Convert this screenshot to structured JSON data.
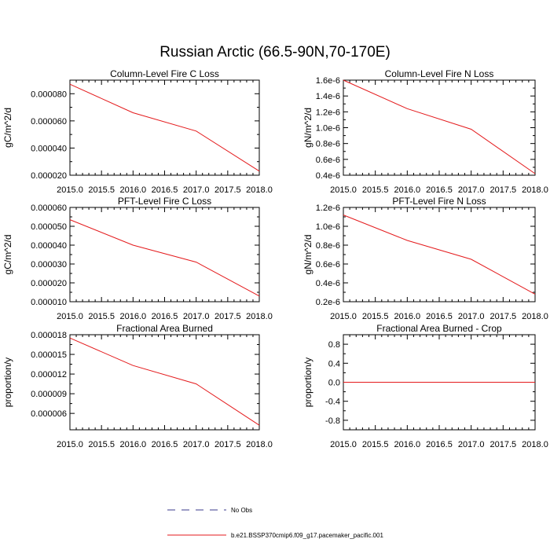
{
  "title": "Russian Arctic (66.5-90N,70-170E)",
  "series_color": "#e41a1c",
  "obs_color": "#3a3a8c",
  "legend": {
    "entries": [
      {
        "label": "No Obs",
        "style": "dashed",
        "color": "#3a3a8c"
      },
      {
        "label": "b.e21.BSSP370cmip6.f09_g17.pacemaker_pacific.001",
        "style": "solid",
        "color": "#e41a1c"
      }
    ]
  },
  "chart_data": [
    {
      "type": "line",
      "title": "Column-Level Fire C Loss",
      "ylabel": "gC/m^2/d",
      "xlim": [
        2015.0,
        2018.0
      ],
      "ylim": [
        2e-05,
        9e-05
      ],
      "x_ticks": [
        "2015.0",
        "2015.5",
        "2016.0",
        "2016.5",
        "2017.0",
        "2017.5",
        "2018.0"
      ],
      "y_ticks": [
        {
          "value": 2e-05,
          "label": "0.000020"
        },
        {
          "value": 4e-05,
          "label": "0.000040"
        },
        {
          "value": 6e-05,
          "label": "0.000060"
        },
        {
          "value": 8e-05,
          "label": "0.000080"
        }
      ],
      "x": [
        2015.0,
        2016.0,
        2017.0,
        2018.0
      ],
      "series": [
        {
          "values": [
            8.7e-05,
            6.6e-05,
            5.25e-05,
            2.3e-05
          ]
        }
      ]
    },
    {
      "type": "line",
      "title": "Column-Level Fire N Loss",
      "ylabel": "gN/m^2/d",
      "xlim": [
        2015.0,
        2018.0
      ],
      "ylim": [
        4e-07,
        1.6e-06
      ],
      "x_ticks": [
        "2015.0",
        "2015.5",
        "2016.0",
        "2016.5",
        "2017.0",
        "2017.5",
        "2018.0"
      ],
      "y_ticks": [
        {
          "value": 4e-07,
          "label": "0.4e-6"
        },
        {
          "value": 6e-07,
          "label": "0.6e-6"
        },
        {
          "value": 8e-07,
          "label": "0.8e-6"
        },
        {
          "value": 1e-06,
          "label": "1.0e-6"
        },
        {
          "value": 1.2e-06,
          "label": "1.2e-6"
        },
        {
          "value": 1.4e-06,
          "label": "1.4e-6"
        },
        {
          "value": 1.6e-06,
          "label": "1.6e-6"
        }
      ],
      "x": [
        2015.0,
        2016.0,
        2017.0,
        2018.0
      ],
      "series": [
        {
          "values": [
            1.6e-06,
            1.24e-06,
            9.8e-07,
            4.2e-07
          ]
        }
      ]
    },
    {
      "type": "line",
      "title": "PFT-Level Fire C Loss",
      "ylabel": "gC/m^2/d",
      "xlim": [
        2015.0,
        2018.0
      ],
      "ylim": [
        1e-05,
        6e-05
      ],
      "x_ticks": [
        "2015.0",
        "2015.5",
        "2016.0",
        "2016.5",
        "2017.0",
        "2017.5",
        "2018.0"
      ],
      "y_ticks": [
        {
          "value": 1e-05,
          "label": "0.000010"
        },
        {
          "value": 2e-05,
          "label": "0.000020"
        },
        {
          "value": 3e-05,
          "label": "0.000030"
        },
        {
          "value": 4e-05,
          "label": "0.000040"
        },
        {
          "value": 5e-05,
          "label": "0.000050"
        },
        {
          "value": 6e-05,
          "label": "0.000060"
        }
      ],
      "x": [
        2015.0,
        2016.0,
        2017.0,
        2018.0
      ],
      "series": [
        {
          "values": [
            5.35e-05,
            4e-05,
            3.1e-05,
            1.3e-05
          ]
        }
      ]
    },
    {
      "type": "line",
      "title": "PFT-Level Fire N Loss",
      "ylabel": "gN/m^2/d",
      "xlim": [
        2015.0,
        2018.0
      ],
      "ylim": [
        2e-07,
        1.2e-06
      ],
      "x_ticks": [
        "2015.0",
        "2015.5",
        "2016.0",
        "2016.5",
        "2017.0",
        "2017.5",
        "2018.0"
      ],
      "y_ticks": [
        {
          "value": 2e-07,
          "label": "0.2e-6"
        },
        {
          "value": 4e-07,
          "label": "0.4e-6"
        },
        {
          "value": 6e-07,
          "label": "0.6e-6"
        },
        {
          "value": 8e-07,
          "label": "0.8e-6"
        },
        {
          "value": 1e-06,
          "label": "1.0e-6"
        },
        {
          "value": 1.2e-06,
          "label": "1.2e-6"
        }
      ],
      "x": [
        2015.0,
        2016.0,
        2017.0,
        2018.0
      ],
      "series": [
        {
          "values": [
            1.12e-06,
            8.5e-07,
            6.5e-07,
            2.8e-07
          ]
        }
      ]
    },
    {
      "type": "line",
      "title": "Fractional Area Burned",
      "ylabel": "proportion/y",
      "xlim": [
        2015.0,
        2018.0
      ],
      "ylim": [
        3.5e-06,
        1.8e-05
      ],
      "x_ticks": [
        "2015.0",
        "2015.5",
        "2016.0",
        "2016.5",
        "2017.0",
        "2017.5",
        "2018.0"
      ],
      "y_ticks": [
        {
          "value": 6e-06,
          "label": "0.000006"
        },
        {
          "value": 9e-06,
          "label": "0.000009"
        },
        {
          "value": 1.2e-05,
          "label": "0.000012"
        },
        {
          "value": 1.5e-05,
          "label": "0.000015"
        },
        {
          "value": 1.8e-05,
          "label": "0.000018"
        }
      ],
      "x": [
        2015.0,
        2016.0,
        2017.0,
        2018.0
      ],
      "series": [
        {
          "values": [
            1.75e-05,
            1.33e-05,
            1.05e-05,
            4.2e-06
          ]
        }
      ]
    },
    {
      "type": "line",
      "title": "Fractional Area Burned - Crop",
      "ylabel": "proportion/y",
      "xlim": [
        2015.0,
        2018.0
      ],
      "ylim": [
        -1.0,
        1.0
      ],
      "x_ticks": [
        "2015.0",
        "2015.5",
        "2016.0",
        "2016.5",
        "2017.0",
        "2017.5",
        "2018.0"
      ],
      "y_ticks": [
        {
          "value": -0.8,
          "label": "-0.8"
        },
        {
          "value": -0.4,
          "label": "-0.4"
        },
        {
          "value": 0.0,
          "label": "0.0"
        },
        {
          "value": 0.4,
          "label": "0.4"
        },
        {
          "value": 0.8,
          "label": "0.8"
        }
      ],
      "x": [
        2015.0,
        2016.0,
        2017.0,
        2018.0
      ],
      "series": [
        {
          "values": [
            0.0,
            0.0,
            0.0,
            0.0
          ]
        }
      ]
    }
  ]
}
